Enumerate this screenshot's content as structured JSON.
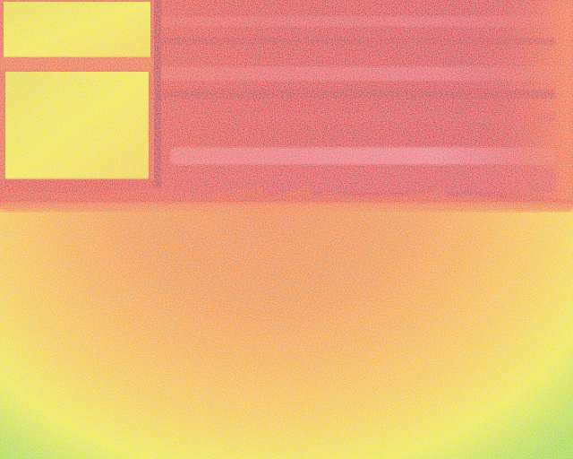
{
  "image": {
    "kind": "thermal-camera-frame",
    "palette": {
      "hot": "#d8283a",
      "hot_highlight": "#f07a86",
      "warm": "#e8481c",
      "mid": "#f08c18",
      "cool": "#f6c81a",
      "cooler": "#eef020",
      "coolest": "#8cd21e"
    }
  }
}
